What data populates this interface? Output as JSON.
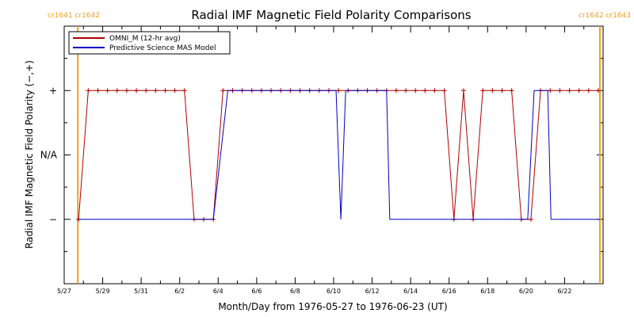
{
  "chart_data": {
    "type": "line",
    "title": "Radial IMF Magnetic Field Polarity Comparisons",
    "xlabel": "Month/Day from 1976-05-27 to 1976-06-23 (UT)",
    "ylabel": "Radial IMF Magnetic Field Polarity (−,+)",
    "x_start": "1976-05-27",
    "xlim": [
      "1976-05-27T00:00",
      "1976-06-24T00:00"
    ],
    "x_tick_labels": [
      "5/27",
      "5/29",
      "5/31",
      "6/2",
      "6/4",
      "6/6",
      "6/8",
      "6/10",
      "6/12",
      "6/14",
      "6/16",
      "6/18",
      "6/20",
      "6/22"
    ],
    "y_tick_labels": [
      "−",
      "N/A",
      "+"
    ],
    "y_tick_values": [
      -1,
      0,
      1
    ],
    "ylim": [
      -2,
      2
    ],
    "carrington_markers": {
      "left_label": "cr1641 cr1642",
      "right_label": "cr1642 cr1643",
      "color": "#f0a020",
      "positions": [
        "1976-05-27T17:00",
        "1976-06-23T20:00"
      ]
    },
    "legend": {
      "placement": "top-left",
      "entries": [
        "OMNI_M (12-hr avg)",
        "Predictive Science MAS Model"
      ]
    },
    "series": [
      {
        "name": "OMNI_M (12-hr avg)",
        "color": "#b00000",
        "marker": "+",
        "points": [
          [
            "1976-05-27T18:00",
            -1
          ],
          [
            "1976-05-28T06:00",
            1
          ],
          [
            "1976-05-28T18:00",
            1
          ],
          [
            "1976-05-29T06:00",
            1
          ],
          [
            "1976-05-29T18:00",
            1
          ],
          [
            "1976-05-30T06:00",
            1
          ],
          [
            "1976-05-30T18:00",
            1
          ],
          [
            "1976-05-31T06:00",
            1
          ],
          [
            "1976-05-31T18:00",
            1
          ],
          [
            "1976-06-01T06:00",
            1
          ],
          [
            "1976-06-01T18:00",
            1
          ],
          [
            "1976-06-02T06:00",
            1
          ],
          [
            "1976-06-02T18:00",
            -1
          ],
          [
            "1976-06-03T06:00",
            -1
          ],
          [
            "1976-06-03T18:00",
            -1
          ],
          [
            "1976-06-04T06:00",
            1
          ],
          [
            "1976-06-04T18:00",
            1
          ],
          [
            "1976-06-05T06:00",
            1
          ],
          [
            "1976-06-05T18:00",
            1
          ],
          [
            "1976-06-06T06:00",
            1
          ],
          [
            "1976-06-06T18:00",
            1
          ],
          [
            "1976-06-07T06:00",
            1
          ],
          [
            "1976-06-07T18:00",
            1
          ],
          [
            "1976-06-08T06:00",
            1
          ],
          [
            "1976-06-08T18:00",
            1
          ],
          [
            "1976-06-09T06:00",
            1
          ],
          [
            "1976-06-09T18:00",
            1
          ],
          [
            "1976-06-10T06:00",
            1
          ],
          [
            "1976-06-10T18:00",
            1
          ],
          [
            "1976-06-11T06:00",
            1
          ],
          [
            "1976-06-11T18:00",
            1
          ],
          [
            "1976-06-12T06:00",
            1
          ],
          [
            "1976-06-12T18:00",
            1
          ],
          [
            "1976-06-13T06:00",
            1
          ],
          [
            "1976-06-13T18:00",
            1
          ],
          [
            "1976-06-14T06:00",
            1
          ],
          [
            "1976-06-14T18:00",
            1
          ],
          [
            "1976-06-15T06:00",
            1
          ],
          [
            "1976-06-15T18:00",
            1
          ],
          [
            "1976-06-16T06:00",
            -1
          ],
          [
            "1976-06-16T18:00",
            1
          ],
          [
            "1976-06-17T06:00",
            -1
          ],
          [
            "1976-06-17T18:00",
            1
          ],
          [
            "1976-06-18T06:00",
            1
          ],
          [
            "1976-06-18T18:00",
            1
          ],
          [
            "1976-06-19T06:00",
            1
          ],
          [
            "1976-06-19T18:00",
            -1
          ],
          [
            "1976-06-20T06:00",
            -1
          ],
          [
            "1976-06-20T18:00",
            1
          ],
          [
            "1976-06-21T06:00",
            1
          ],
          [
            "1976-06-21T18:00",
            1
          ],
          [
            "1976-06-22T06:00",
            1
          ],
          [
            "1976-06-22T18:00",
            1
          ],
          [
            "1976-06-23T06:00",
            1
          ],
          [
            "1976-06-23T18:00",
            1
          ]
        ]
      },
      {
        "name": "Predictive Science MAS Model",
        "color": "#0000c0",
        "marker": "none",
        "points": [
          [
            "1976-05-27T18:00",
            -1
          ],
          [
            "1976-06-03T18:00",
            -1
          ],
          [
            "1976-06-04T12:00",
            1
          ],
          [
            "1976-06-10T03:00",
            1
          ],
          [
            "1976-06-10T09:00",
            -1
          ],
          [
            "1976-06-10T15:00",
            1
          ],
          [
            "1976-06-12T18:00",
            1
          ],
          [
            "1976-06-12T22:00",
            -1
          ],
          [
            "1976-06-20T02:00",
            -1
          ],
          [
            "1976-06-20T10:00",
            1
          ],
          [
            "1976-06-21T03:00",
            1
          ],
          [
            "1976-06-21T07:00",
            -1
          ],
          [
            "1976-06-23T20:00",
            -1
          ]
        ]
      }
    ]
  }
}
